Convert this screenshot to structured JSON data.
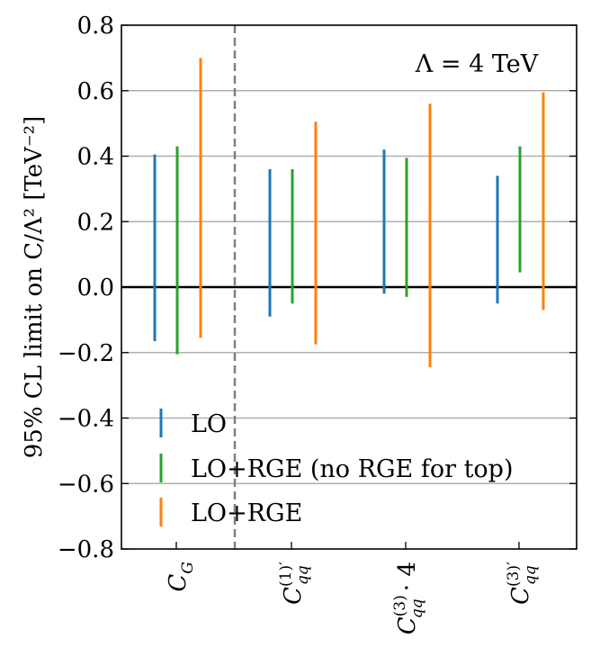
{
  "chart_data": {
    "type": "interval",
    "annotation": "Λ = 4 TeV",
    "ylabel": "95% CL limit on C/Λ² [TeV⁻²]",
    "ylim": [
      -0.8,
      0.8
    ],
    "yticks": [
      -0.8,
      -0.6,
      -0.4,
      -0.2,
      0.0,
      0.2,
      0.4,
      0.6,
      0.8
    ],
    "ytick_labels": [
      "−0.8",
      "−0.6",
      "−0.4",
      "−0.2",
      "0.0",
      "0.2",
      "0.4",
      "0.6",
      "0.8"
    ],
    "grid": "horizontal",
    "legend_position": "lower-left",
    "categories": [
      {
        "symbol": "C",
        "sub": "G",
        "sup": "",
        "suffix": ""
      },
      {
        "symbol": "C",
        "sub": "qq",
        "sup": "(1)′",
        "suffix": ""
      },
      {
        "symbol": "C",
        "sub": "qq",
        "sup": "(3)",
        "suffix": " · 4"
      },
      {
        "symbol": "C",
        "sub": "qq",
        "sup": "(3)′",
        "suffix": ""
      }
    ],
    "series": [
      {
        "name": "LO",
        "color": "#1f77b4",
        "intervals": [
          [
            -0.165,
            0.405
          ],
          [
            -0.09,
            0.36
          ],
          [
            -0.02,
            0.42
          ],
          [
            -0.05,
            0.34
          ]
        ]
      },
      {
        "name": "LO+RGE (no RGE for top)",
        "color": "#2ca02c",
        "intervals": [
          [
            -0.205,
            0.43
          ],
          [
            -0.05,
            0.36
          ],
          [
            -0.03,
            0.395
          ],
          [
            0.045,
            0.43
          ]
        ]
      },
      {
        "name": "LO+RGE",
        "color": "#ff7f0e",
        "intervals": [
          [
            -0.155,
            0.7
          ],
          [
            -0.175,
            0.505
          ],
          [
            -0.245,
            0.56
          ],
          [
            -0.07,
            0.595
          ]
        ]
      }
    ]
  }
}
